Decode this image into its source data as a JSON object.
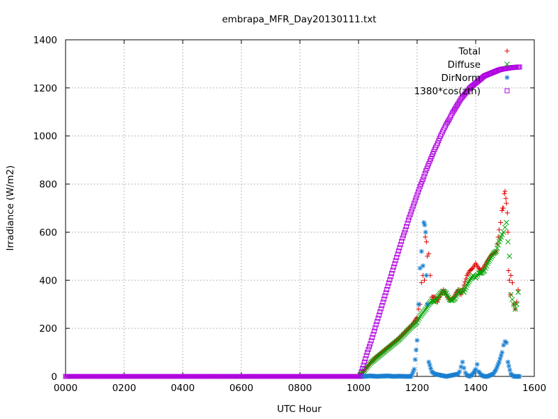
{
  "chart_data": {
    "type": "scatter",
    "title": "embrapa_MFR_Day20130111.txt",
    "xlabel": "UTC Hour",
    "ylabel": "Irradiance (W/m2)",
    "xlim": [
      0,
      1600
    ],
    "ylim": [
      0,
      1400
    ],
    "xticks": [
      0,
      200,
      400,
      600,
      800,
      1000,
      1200,
      1400,
      1600
    ],
    "xtick_labels": [
      "0000",
      "0200",
      "0400",
      "0600",
      "0800",
      "1000",
      "1200",
      "1400",
      "1600"
    ],
    "yticks": [
      0,
      200,
      400,
      600,
      800,
      1000,
      1200,
      1400
    ],
    "ytick_labels": [
      "0",
      "200",
      "400",
      "600",
      "800",
      "1000",
      "1200",
      "1400"
    ],
    "grid": true,
    "legend_position": "top-right",
    "series": [
      {
        "name": "Total",
        "marker": "plus",
        "color": "#e00000",
        "x": [
          1005,
          1020,
          1040,
          1060,
          1080,
          1100,
          1120,
          1140,
          1160,
          1180,
          1200,
          1205,
          1210,
          1215,
          1220,
          1225,
          1228,
          1232,
          1235,
          1240,
          1245,
          1250,
          1260,
          1270,
          1280,
          1290,
          1300,
          1310,
          1320,
          1330,
          1340,
          1350,
          1360,
          1370,
          1380,
          1390,
          1400,
          1410,
          1420,
          1430,
          1440,
          1450,
          1460,
          1470,
          1480,
          1485,
          1490,
          1492,
          1495,
          1498,
          1500,
          1503,
          1505,
          1508,
          1510,
          1512,
          1515,
          1518,
          1520,
          1525,
          1530,
          1535,
          1540,
          1545
        ],
        "y": [
          5,
          25,
          55,
          80,
          100,
          120,
          140,
          160,
          185,
          210,
          245,
          280,
          300,
          390,
          420,
          400,
          580,
          560,
          500,
          510,
          420,
          330,
          330,
          310,
          340,
          360,
          340,
          320,
          320,
          340,
          360,
          340,
          380,
          420,
          440,
          450,
          470,
          450,
          440,
          460,
          480,
          500,
          510,
          520,
          610,
          640,
          690,
          700,
          700,
          760,
          770,
          740,
          720,
          680,
          600,
          440,
          400,
          340,
          420,
          390,
          300,
          280,
          310,
          360
        ]
      },
      {
        "name": "Diffuse",
        "marker": "cross",
        "color": "#00a000",
        "x": [
          1005,
          1020,
          1040,
          1060,
          1080,
          1100,
          1120,
          1140,
          1160,
          1180,
          1200,
          1210,
          1220,
          1230,
          1240,
          1250,
          1260,
          1270,
          1280,
          1290,
          1300,
          1310,
          1320,
          1330,
          1340,
          1350,
          1360,
          1370,
          1380,
          1390,
          1400,
          1410,
          1420,
          1430,
          1440,
          1450,
          1460,
          1470,
          1480,
          1490,
          1495,
          1500,
          1505,
          1510,
          1515,
          1520,
          1525,
          1530,
          1535,
          1540,
          1545
        ],
        "y": [
          5,
          25,
          55,
          75,
          95,
          115,
          135,
          155,
          180,
          205,
          225,
          250,
          265,
          280,
          300,
          315,
          310,
          330,
          345,
          355,
          345,
          320,
          315,
          325,
          350,
          360,
          350,
          380,
          400,
          420,
          410,
          430,
          430,
          440,
          470,
          490,
          510,
          520,
          560,
          590,
          600,
          620,
          640,
          560,
          500,
          340,
          320,
          300,
          280,
          300,
          350
        ]
      },
      {
        "name": "DirNorm",
        "marker": "star",
        "color": "#1a7fd0",
        "x": [
          1005,
          1020,
          1040,
          1060,
          1080,
          1100,
          1120,
          1140,
          1160,
          1180,
          1190,
          1200,
          1205,
          1210,
          1215,
          1220,
          1223,
          1226,
          1229,
          1232,
          1235,
          1240,
          1250,
          1260,
          1280,
          1300,
          1320,
          1340,
          1345,
          1350,
          1355,
          1360,
          1365,
          1370,
          1380,
          1390,
          1400,
          1405,
          1410,
          1420,
          1430,
          1440,
          1450,
          1460,
          1470,
          1480,
          1490,
          1495,
          1500,
          1505,
          1510,
          1520,
          1530,
          1540,
          1550
        ],
        "y": [
          0,
          0,
          2,
          0,
          1,
          2,
          0,
          1,
          0,
          0,
          30,
          150,
          300,
          450,
          520,
          460,
          640,
          630,
          600,
          420,
          300,
          60,
          20,
          10,
          5,
          0,
          5,
          10,
          20,
          40,
          60,
          35,
          15,
          5,
          0,
          10,
          30,
          50,
          20,
          5,
          0,
          0,
          5,
          10,
          30,
          60,
          100,
          130,
          145,
          140,
          60,
          10,
          0,
          0,
          0
        ]
      },
      {
        "name": "1380*cos(zth)",
        "marker": "square",
        "color": "#b000e0",
        "x": [
          0,
          100,
          200,
          300,
          400,
          500,
          600,
          700,
          800,
          900,
          1000,
          1005,
          1010,
          1020,
          1030,
          1040,
          1050,
          1060,
          1070,
          1080,
          1090,
          1100,
          1110,
          1120,
          1130,
          1140,
          1150,
          1160,
          1170,
          1180,
          1190,
          1200,
          1210,
          1220,
          1230,
          1240,
          1250,
          1260,
          1270,
          1280,
          1290,
          1300,
          1310,
          1320,
          1330,
          1340,
          1350,
          1360,
          1370,
          1380,
          1390,
          1400,
          1410,
          1420,
          1430,
          1440,
          1450,
          1460,
          1470,
          1480,
          1490,
          1500,
          1510,
          1520,
          1530,
          1540,
          1550
        ],
        "y": [
          0,
          0,
          0,
          0,
          0,
          0,
          0,
          0,
          0,
          0,
          0,
          0,
          20,
          60,
          100,
          135,
          175,
          215,
          255,
          295,
          335,
          375,
          415,
          455,
          495,
          535,
          575,
          610,
          650,
          685,
          720,
          755,
          790,
          820,
          855,
          885,
          915,
          945,
          970,
          1000,
          1025,
          1050,
          1070,
          1095,
          1115,
          1135,
          1155,
          1170,
          1185,
          1200,
          1210,
          1220,
          1230,
          1240,
          1250,
          1255,
          1260,
          1265,
          1270,
          1275,
          1278,
          1280,
          1282,
          1284,
          1285,
          1286,
          1287
        ]
      }
    ]
  }
}
